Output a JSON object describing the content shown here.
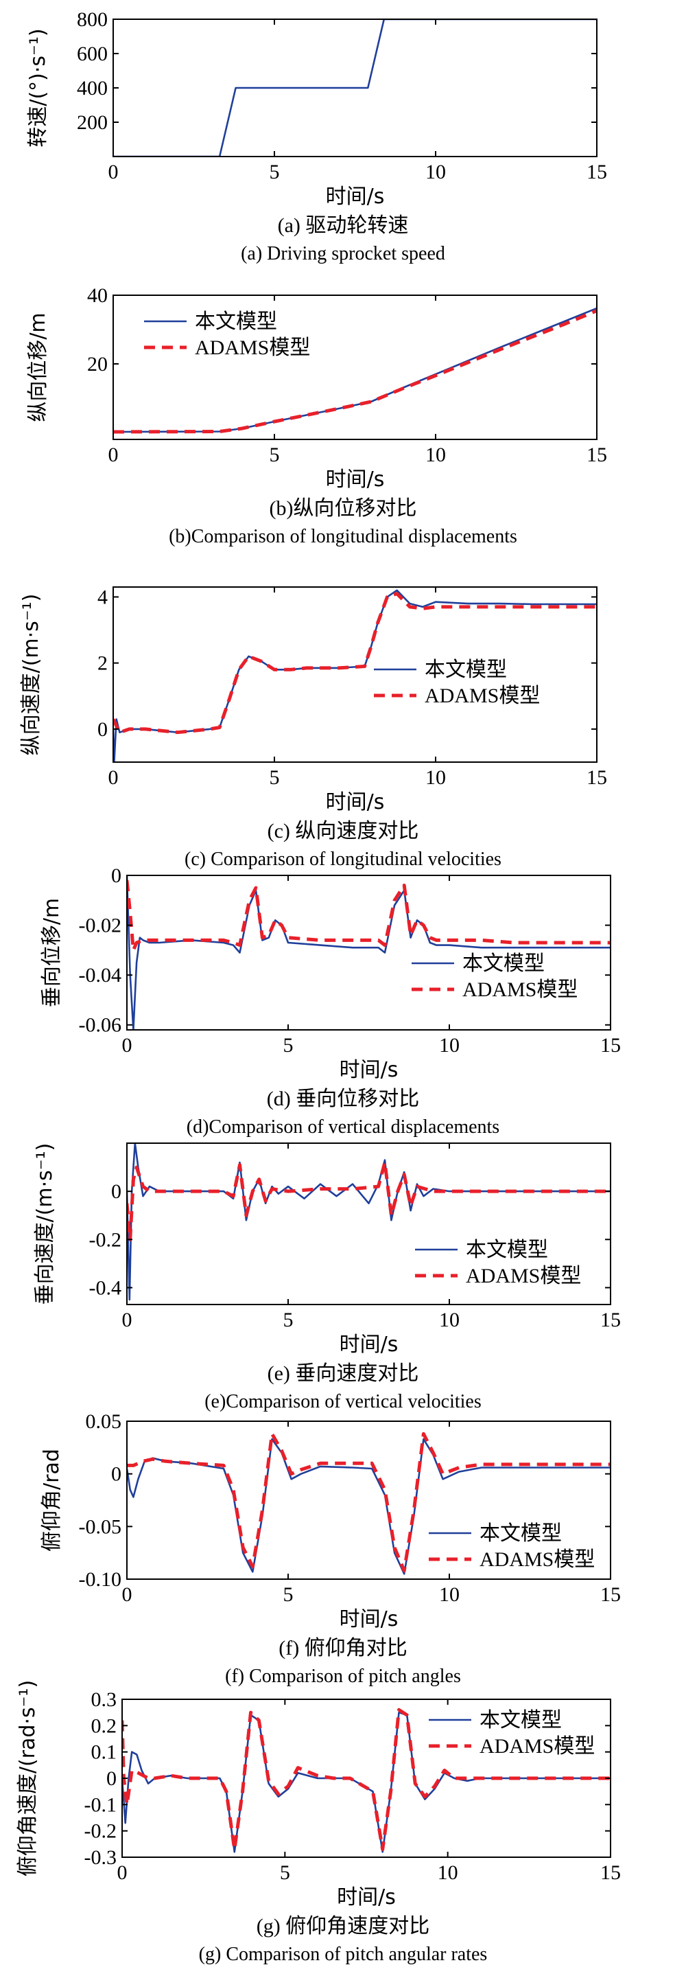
{
  "colors": {
    "ours": "#1f3f9a",
    "adams": "#e8202a",
    "axis": "#000000"
  },
  "legend": {
    "ours": "本文模型",
    "adams": "ADAMS模型"
  },
  "chart_data": [
    {
      "id": "a",
      "type": "line",
      "xlabel": "时间/s",
      "ylabel": "转速/(°)·s⁻¹)",
      "xlim": [
        0,
        15
      ],
      "ylim": [
        0,
        800
      ],
      "xticks": [
        0,
        5,
        10,
        15
      ],
      "yticks": [
        200,
        400,
        600,
        800
      ],
      "caption_cn": "(a) 驱动轮转速",
      "caption_en": "(a) Driving sprocket speed",
      "legend": false,
      "series": [
        {
          "key": "ours",
          "x": [
            0,
            3.3,
            3.8,
            7.9,
            8.4,
            15
          ],
          "y": [
            0,
            0,
            400,
            400,
            800,
            800
          ]
        }
      ]
    },
    {
      "id": "b",
      "type": "line",
      "xlabel": "时间/s",
      "ylabel": "纵向位移/m",
      "xlim": [
        0,
        15
      ],
      "ylim": [
        -2,
        40
      ],
      "xticks": [
        0,
        5,
        10,
        15
      ],
      "yticks": [
        20,
        40
      ],
      "caption_cn": "(b)纵向位移对比",
      "caption_en": "(b)Comparison of longitudinal displacements",
      "legend": true,
      "series": [
        {
          "key": "ours",
          "x": [
            0,
            3.3,
            4,
            5,
            6,
            7,
            8,
            9,
            10,
            11,
            12,
            13,
            14,
            15
          ],
          "y": [
            0.2,
            0.3,
            1.2,
            3.2,
            5.1,
            7.0,
            9.0,
            13.1,
            17.0,
            20.9,
            24.8,
            28.6,
            32.4,
            36.2
          ]
        },
        {
          "key": "adams",
          "x": [
            0,
            3.3,
            4,
            5,
            6,
            7,
            8,
            9,
            10,
            11,
            12,
            13,
            14,
            15
          ],
          "y": [
            0.2,
            0.3,
            1.2,
            3.2,
            5.1,
            7.0,
            9.0,
            12.9,
            16.6,
            20.4,
            24.2,
            27.9,
            31.6,
            35.5
          ]
        }
      ]
    },
    {
      "id": "c",
      "type": "line",
      "xlabel": "时间/s",
      "ylabel": "纵向速度/(m·s⁻¹)",
      "xlim": [
        0,
        15
      ],
      "ylim": [
        -1.0,
        4.3
      ],
      "xticks": [
        0,
        5,
        10,
        15
      ],
      "yticks": [
        0,
        2,
        4
      ],
      "caption_cn": "(c) 纵向速度对比",
      "caption_en": "(c) Comparison of longitudinal velocities",
      "legend": true,
      "series": [
        {
          "key": "ours",
          "x": [
            0,
            0.03,
            0.1,
            0.2,
            0.5,
            1,
            2,
            3,
            3.3,
            3.6,
            3.9,
            4.2,
            4.6,
            5,
            5.5,
            6,
            7,
            7.8,
            8.0,
            8.2,
            8.5,
            8.8,
            9.2,
            9.6,
            10,
            11,
            12,
            13,
            14,
            15
          ],
          "y": [
            0,
            -1.0,
            0.3,
            -0.1,
            0,
            0,
            -0.1,
            0,
            0.05,
            0.9,
            1.8,
            2.2,
            2.05,
            1.8,
            1.8,
            1.85,
            1.85,
            1.9,
            2.5,
            3.2,
            4.0,
            4.2,
            3.8,
            3.7,
            3.85,
            3.8,
            3.8,
            3.78,
            3.78,
            3.78
          ]
        },
        {
          "key": "adams",
          "x": [
            0,
            0.1,
            0.2,
            0.5,
            1,
            2,
            3,
            3.3,
            3.6,
            3.9,
            4.2,
            4.6,
            5,
            5.5,
            6,
            7,
            7.8,
            8.0,
            8.2,
            8.5,
            8.8,
            9.2,
            9.6,
            10,
            11,
            12,
            13,
            14,
            15
          ],
          "y": [
            0.3,
            0.1,
            -0.1,
            0,
            0,
            -0.1,
            0,
            0.05,
            0.9,
            1.8,
            2.2,
            2.05,
            1.8,
            1.8,
            1.85,
            1.85,
            1.9,
            2.5,
            3.2,
            4.0,
            4.1,
            3.7,
            3.65,
            3.7,
            3.7,
            3.7,
            3.7,
            3.7,
            3.7
          ]
        }
      ]
    },
    {
      "id": "d",
      "type": "line",
      "xlabel": "时间/s",
      "ylabel": "垂向位移/m",
      "xlim": [
        0,
        15
      ],
      "ylim": [
        -0.062,
        0
      ],
      "xticks": [
        0,
        5,
        10,
        15
      ],
      "yticks": [
        0,
        -0.02,
        -0.04,
        -0.06
      ],
      "caption_cn": "(d) 垂向位移对比",
      "caption_en": "(d)Comparison of vertical displacements",
      "legend": true,
      "series": [
        {
          "key": "ours",
          "x": [
            0,
            0.1,
            0.2,
            0.3,
            0.4,
            0.5,
            0.7,
            1,
            2,
            3,
            3.3,
            3.5,
            3.8,
            4.0,
            4.2,
            4.4,
            4.6,
            4.8,
            5,
            6,
            7,
            7.8,
            8.0,
            8.3,
            8.6,
            8.8,
            9.0,
            9.2,
            9.4,
            9.6,
            10,
            11,
            12,
            13,
            14,
            15
          ],
          "y": [
            0,
            -0.04,
            -0.062,
            -0.035,
            -0.025,
            -0.026,
            -0.027,
            -0.027,
            -0.026,
            -0.027,
            -0.028,
            -0.031,
            -0.012,
            -0.006,
            -0.026,
            -0.025,
            -0.018,
            -0.02,
            -0.027,
            -0.028,
            -0.029,
            -0.029,
            -0.031,
            -0.012,
            -0.006,
            -0.025,
            -0.018,
            -0.02,
            -0.027,
            -0.028,
            -0.028,
            -0.029,
            -0.029,
            -0.029,
            -0.029,
            -0.029
          ]
        },
        {
          "key": "adams",
          "x": [
            0,
            0.1,
            0.2,
            0.3,
            0.5,
            1,
            2,
            3,
            3.3,
            3.5,
            3.8,
            4.0,
            4.2,
            4.4,
            4.6,
            4.8,
            5,
            6,
            7,
            7.8,
            8.0,
            8.3,
            8.6,
            8.8,
            9.0,
            9.2,
            9.4,
            9.6,
            10,
            11,
            12,
            13,
            14,
            15
          ],
          "y": [
            -0.002,
            -0.015,
            -0.03,
            -0.027,
            -0.026,
            -0.026,
            -0.026,
            -0.026,
            -0.027,
            -0.028,
            -0.01,
            -0.005,
            -0.025,
            -0.024,
            -0.018,
            -0.02,
            -0.025,
            -0.026,
            -0.026,
            -0.026,
            -0.028,
            -0.01,
            -0.004,
            -0.024,
            -0.018,
            -0.02,
            -0.025,
            -0.026,
            -0.026,
            -0.026,
            -0.027,
            -0.027,
            -0.027,
            -0.027
          ]
        }
      ]
    },
    {
      "id": "e",
      "type": "line",
      "xlabel": "时间/s",
      "ylabel": "垂向速度/(m·s⁻¹)",
      "xlim": [
        0,
        15
      ],
      "ylim": [
        -0.47,
        0.2
      ],
      "xticks": [
        0,
        5,
        10,
        15
      ],
      "yticks": [
        0,
        -0.2,
        -0.4
      ],
      "caption_cn": "(e) 垂向速度对比",
      "caption_en": "(e)Comparison of vertical velocities",
      "legend": true,
      "series": [
        {
          "key": "ours",
          "x": [
            0,
            0.08,
            0.15,
            0.25,
            0.35,
            0.5,
            0.7,
            1,
            2,
            3,
            3.3,
            3.5,
            3.7,
            3.9,
            4.1,
            4.3,
            4.5,
            4.7,
            5,
            5.5,
            6,
            6.5,
            7,
            7.5,
            7.8,
            8.0,
            8.2,
            8.4,
            8.6,
            8.8,
            9.0,
            9.2,
            9.5,
            10,
            11,
            12,
            13,
            14,
            15
          ],
          "y": [
            0,
            -0.45,
            0.0,
            0.2,
            0.1,
            -0.02,
            0.02,
            0,
            0,
            0,
            -0.03,
            0.12,
            -0.12,
            0.0,
            0.05,
            -0.05,
            0.02,
            -0.01,
            0.02,
            -0.03,
            0.03,
            -0.02,
            0.03,
            -0.05,
            0.03,
            0.13,
            -0.12,
            0.0,
            0.08,
            -0.08,
            0.03,
            -0.02,
            0.01,
            0,
            0,
            0,
            0,
            0,
            0
          ]
        },
        {
          "key": "adams",
          "x": [
            0,
            0.1,
            0.2,
            0.3,
            0.5,
            0.7,
            1,
            2,
            3,
            3.3,
            3.5,
            3.7,
            3.9,
            4.1,
            4.3,
            4.5,
            5,
            6,
            7,
            7.8,
            8.0,
            8.2,
            8.4,
            8.6,
            8.8,
            9.0,
            9.5,
            10,
            11,
            12,
            13,
            14,
            15
          ],
          "y": [
            -0.05,
            -0.2,
            0.05,
            0.1,
            0.02,
            0,
            0,
            0,
            0,
            -0.02,
            0.11,
            -0.1,
            0.0,
            0.05,
            -0.04,
            0.01,
            0,
            0.01,
            0.01,
            0.02,
            0.12,
            -0.1,
            0.0,
            0.07,
            -0.06,
            0.02,
            0.0,
            0,
            0,
            0,
            0,
            0,
            0
          ]
        }
      ]
    },
    {
      "id": "f",
      "type": "line",
      "xlabel": "时间/s",
      "ylabel": "俯仰角/rad",
      "xlim": [
        0,
        15
      ],
      "ylim": [
        -0.1,
        0.05
      ],
      "xticks": [
        0,
        5,
        10,
        15
      ],
      "yticks": [
        0.05,
        0,
        -0.05,
        -0.1
      ],
      "ytick_labels": [
        "0.05",
        "0",
        "-0.05",
        "-0.10"
      ],
      "caption_cn": "(f) 俯仰角对比",
      "caption_en": "(f) Comparison of pitch angles",
      "legend": true,
      "series": [
        {
          "key": "ours",
          "x": [
            0,
            0.1,
            0.2,
            0.35,
            0.55,
            0.8,
            1.2,
            2,
            3,
            3.3,
            3.6,
            3.9,
            4.2,
            4.5,
            4.8,
            5.1,
            5.4,
            6,
            7,
            7.6,
            8.0,
            8.3,
            8.6,
            8.9,
            9.2,
            9.5,
            9.8,
            10.3,
            11,
            12,
            13,
            14,
            15
          ],
          "y": [
            0.005,
            -0.015,
            -0.022,
            -0.005,
            0.012,
            0.015,
            0.012,
            0.01,
            0.005,
            -0.02,
            -0.075,
            -0.093,
            -0.04,
            0.033,
            0.02,
            -0.005,
            0.0,
            0.007,
            0.006,
            0.005,
            -0.02,
            -0.075,
            -0.095,
            -0.04,
            0.033,
            0.018,
            -0.005,
            0.002,
            0.006,
            0.006,
            0.006,
            0.006,
            0.006
          ]
        },
        {
          "key": "adams",
          "x": [
            0,
            0.2,
            0.5,
            0.8,
            1.2,
            2,
            3,
            3.3,
            3.6,
            3.9,
            4.2,
            4.5,
            4.8,
            5.1,
            5.4,
            6,
            7,
            7.6,
            8.0,
            8.3,
            8.6,
            8.9,
            9.2,
            9.5,
            9.8,
            10.3,
            11,
            12,
            13,
            14,
            15
          ],
          "y": [
            0.008,
            0.008,
            0.012,
            0.014,
            0.012,
            0.01,
            0.008,
            -0.015,
            -0.07,
            -0.088,
            -0.035,
            0.038,
            0.022,
            0.0,
            0.004,
            0.01,
            0.01,
            0.01,
            -0.015,
            -0.07,
            -0.092,
            -0.035,
            0.038,
            0.02,
            0.0,
            0.006,
            0.009,
            0.009,
            0.009,
            0.009,
            0.009
          ]
        }
      ]
    },
    {
      "id": "g",
      "type": "line",
      "xlabel": "时间/s",
      "ylabel": "俯仰角速度/(rad·s⁻¹)",
      "xlim": [
        0,
        15
      ],
      "ylim": [
        -0.3,
        0.3
      ],
      "xticks": [
        0,
        5,
        10,
        15
      ],
      "yticks": [
        0.3,
        0.2,
        0.1,
        0,
        -0.1,
        -0.2,
        -0.3
      ],
      "caption_cn": "(g) 俯仰角速度对比",
      "caption_en": "(g) Comparison of pitch angular rates",
      "legend": true,
      "series": [
        {
          "key": "ours",
          "x": [
            0,
            0.1,
            0.2,
            0.3,
            0.45,
            0.6,
            0.8,
            1.0,
            1.5,
            2,
            3,
            3.2,
            3.45,
            3.7,
            3.95,
            4.2,
            4.5,
            4.8,
            5.1,
            5.4,
            6,
            6.5,
            7,
            7.7,
            8.0,
            8.25,
            8.5,
            8.75,
            9.0,
            9.3,
            9.6,
            9.9,
            10.2,
            10.6,
            11,
            12,
            13,
            14,
            15
          ],
          "y": [
            0,
            -0.17,
            0.0,
            0.1,
            0.09,
            0.03,
            -0.02,
            0.0,
            0.01,
            0.0,
            0.0,
            -0.05,
            -0.28,
            -0.05,
            0.24,
            0.22,
            -0.02,
            -0.07,
            -0.04,
            0.02,
            0.0,
            0.0,
            0.0,
            -0.05,
            -0.28,
            -0.05,
            0.25,
            0.24,
            -0.02,
            -0.08,
            -0.04,
            0.02,
            0.0,
            -0.01,
            0.0,
            0.0,
            0.0,
            0.0,
            0.0
          ]
        },
        {
          "key": "adams",
          "x": [
            0,
            0.05,
            0.15,
            0.3,
            0.5,
            0.8,
            1.0,
            1.5,
            2,
            3,
            3.2,
            3.45,
            3.7,
            3.95,
            4.2,
            4.5,
            4.8,
            5.1,
            5.4,
            6,
            6.5,
            7,
            7.7,
            8.0,
            8.25,
            8.5,
            8.75,
            9.0,
            9.3,
            9.6,
            9.9,
            10.2,
            10.6,
            11,
            12,
            13,
            14,
            15
          ],
          "y": [
            0.22,
            0.0,
            -0.1,
            0.03,
            0.02,
            0.0,
            0.0,
            0.01,
            0.0,
            0.0,
            -0.05,
            -0.27,
            -0.05,
            0.25,
            0.22,
            -0.01,
            -0.06,
            -0.03,
            0.04,
            0.01,
            0.0,
            0.0,
            -0.05,
            -0.27,
            -0.05,
            0.26,
            0.24,
            -0.02,
            -0.07,
            -0.03,
            0.03,
            0.0,
            0.0,
            0.0,
            0.0,
            0.0,
            0.0,
            0.0
          ]
        }
      ]
    }
  ]
}
